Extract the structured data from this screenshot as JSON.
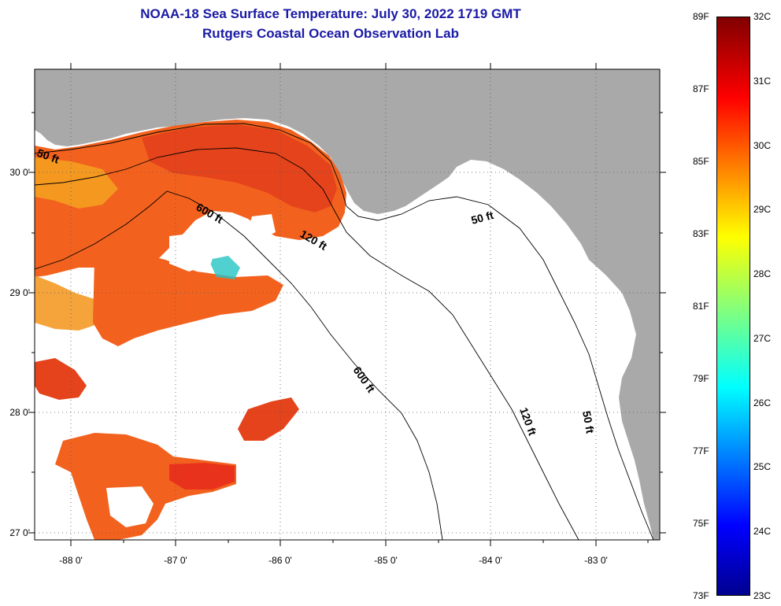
{
  "header": {
    "title": "NOAA-18 Sea Surface Temperature:  July 30, 2022 1719 GMT",
    "subtitle": "Rutgers Coastal Ocean Observation Lab"
  },
  "map": {
    "lon_ticks": [
      "-88 0'",
      "-87 0'",
      "-86 0'",
      "-85 0'",
      "-84 0'",
      "-83 0'"
    ],
    "lat_ticks": [
      "30 0'",
      "29 0'",
      "28 0'",
      "27 0'"
    ],
    "contour_labels": [
      {
        "text": "50 ft",
        "id": "contour-50ft-west"
      },
      {
        "text": "600 ft",
        "id": "contour-600ft-north"
      },
      {
        "text": "120 ft",
        "id": "contour-120ft-north"
      },
      {
        "text": "50 ft",
        "id": "contour-50ft-east"
      },
      {
        "text": "600 ft",
        "id": "contour-600ft-south"
      },
      {
        "text": "120 ft",
        "id": "contour-120ft-south"
      },
      {
        "text": "50 ft",
        "id": "contour-50ft-south"
      }
    ],
    "colors": {
      "land": "#a9a9a9",
      "cloud": "#ffffff",
      "warm": "#f2621e",
      "hot": "#e8321c",
      "mild": "#f5a221",
      "cool": "#26c4c4"
    }
  },
  "colorbar": {
    "fahrenheit": [
      "89F",
      "87F",
      "85F",
      "83F",
      "81F",
      "79F",
      "77F",
      "75F",
      "73F"
    ],
    "celsius": [
      "32C",
      "31C",
      "30C",
      "29C",
      "28C",
      "27C",
      "26C",
      "25C",
      "24C",
      "23C"
    ]
  }
}
